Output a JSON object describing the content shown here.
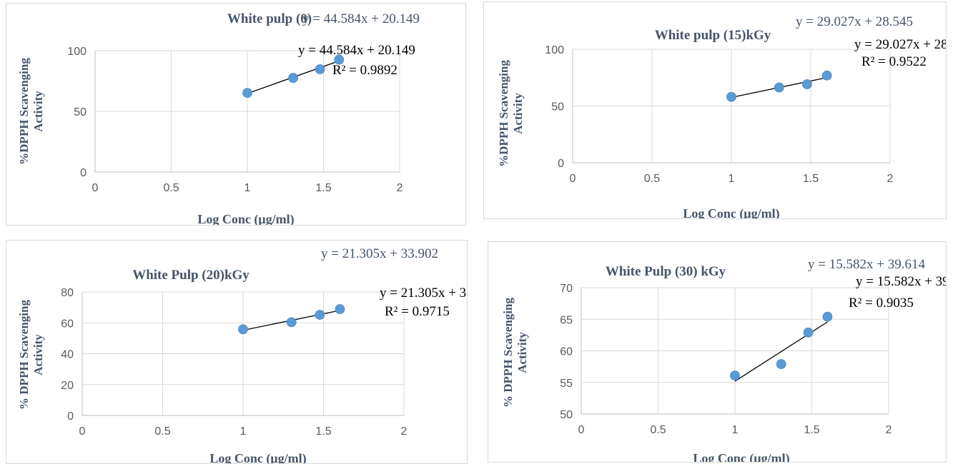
{
  "chart_data": [
    {
      "type": "scatter",
      "title": "White pulp (0)",
      "title_equation": "y = 44.584x + 20.149",
      "xlabel": "Log Conc (µg/ml)",
      "ylabel": "%DPPH Scavenging Activity",
      "ylabel_lines": [
        "%DPPH Scavenging",
        "Activity"
      ],
      "xlim": [
        0,
        2
      ],
      "ylim": [
        0,
        100
      ],
      "x_ticks": [
        0,
        0.5,
        1,
        1.5,
        2
      ],
      "x_tick_labels": [
        "0",
        "0.5",
        "1",
        "1.5",
        "2"
      ],
      "y_ticks": [
        0,
        50,
        100
      ],
      "y_tick_labels": [
        "0",
        "50",
        "100"
      ],
      "grid": true,
      "points": [
        {
          "x": 1,
          "y": 65.2
        },
        {
          "x": 1.301,
          "y": 77.6
        },
        {
          "x": 1.477,
          "y": 84.7
        },
        {
          "x": 1.602,
          "y": 92.6
        }
      ],
      "trendline": {
        "slope": 44.584,
        "intercept": 20.149,
        "x_range": [
          1,
          1.602
        ]
      },
      "trend_equation": "y = 44.584x + 20.149",
      "r_squared": "R² = 0.9892",
      "marker_color": "#5b9bd5",
      "text_color": "#44546a"
    },
    {
      "type": "scatter",
      "title": "White pulp (15)kGy",
      "title_equation": "y = 29.027x + 28.545",
      "xlabel": "Log Conc (µg/ml)",
      "ylabel": "%DPPH Scavenging Activity",
      "ylabel_lines": [
        "%DPPH Scavenging",
        "Activity"
      ],
      "xlim": [
        0,
        2
      ],
      "ylim": [
        0,
        100
      ],
      "x_ticks": [
        0,
        0.5,
        1,
        1.5,
        2
      ],
      "x_tick_labels": [
        "0",
        "0.5",
        "1",
        "1.5",
        "2"
      ],
      "y_ticks": [
        0,
        50,
        100
      ],
      "y_tick_labels": [
        "0",
        "50",
        "100"
      ],
      "grid": true,
      "points": [
        {
          "x": 1,
          "y": 58.0
        },
        {
          "x": 1.301,
          "y": 66.3
        },
        {
          "x": 1.477,
          "y": 69.2
        },
        {
          "x": 1.602,
          "y": 76.9
        }
      ],
      "trendline": {
        "slope": 29.027,
        "intercept": 28.545,
        "x_range": [
          1,
          1.602
        ]
      },
      "trend_equation": "y = 29.027x + 28.545",
      "r_squared": "R² = 0.9522",
      "marker_color": "#5b9bd5",
      "text_color": "#44546a"
    },
    {
      "type": "scatter",
      "title": "White Pulp (20)kGy",
      "title_equation": "y = 21.305x + 33.902",
      "xlabel": "Log Conc (µg/ml)",
      "ylabel": "% DPPH Scavenging Activity",
      "ylabel_lines": [
        "% DPPH Scavenging",
        "Activity"
      ],
      "xlim": [
        0,
        2
      ],
      "ylim": [
        0,
        80
      ],
      "x_ticks": [
        0,
        0.5,
        1,
        1.5,
        2
      ],
      "x_tick_labels": [
        "0",
        "0.5",
        "1",
        "1.5",
        "2"
      ],
      "y_ticks": [
        0,
        20,
        40,
        60,
        80
      ],
      "y_tick_labels": [
        "0",
        "20",
        "40",
        "60",
        "80"
      ],
      "grid": true,
      "points": [
        {
          "x": 1,
          "y": 55.8
        },
        {
          "x": 1.301,
          "y": 60.4
        },
        {
          "x": 1.477,
          "y": 65.2
        },
        {
          "x": 1.602,
          "y": 68.9
        }
      ],
      "trendline": {
        "slope": 21.305,
        "intercept": 33.902,
        "x_range": [
          1,
          1.602
        ]
      },
      "trend_equation": "y = 21.305x + 33.902",
      "r_squared": "R² = 0.9715",
      "marker_color": "#5b9bd5",
      "text_color": "#44546a"
    },
    {
      "type": "scatter",
      "title": "White Pulp (30) kGy",
      "title_equation": "y = 15.582x + 39.614",
      "xlabel": "Log Conc (µg/ml)",
      "ylabel": "% DPPH Scavenging Activity",
      "ylabel_lines": [
        "% DPPH Scavenging",
        "Activity"
      ],
      "xlim": [
        0,
        2
      ],
      "ylim": [
        50,
        70
      ],
      "x_ticks": [
        0,
        0.5,
        1,
        1.5,
        2
      ],
      "x_tick_labels": [
        "0",
        "0.5",
        "1",
        "1.5",
        "2"
      ],
      "y_ticks": [
        50,
        55,
        60,
        65,
        70
      ],
      "y_tick_labels": [
        "50",
        "55",
        "60",
        "65",
        "70"
      ],
      "grid": true,
      "points": [
        {
          "x": 1,
          "y": 56.1
        },
        {
          "x": 1.301,
          "y": 57.9
        },
        {
          "x": 1.477,
          "y": 62.9
        },
        {
          "x": 1.602,
          "y": 65.4
        }
      ],
      "trendline": {
        "slope": 15.582,
        "intercept": 39.614,
        "x_range": [
          1,
          1.602
        ]
      },
      "trend_equation": "y = 15.582x + 39.614",
      "r_squared": "R² = 0.9035",
      "marker_color": "#5b9bd5",
      "text_color": "#44546a"
    }
  ]
}
